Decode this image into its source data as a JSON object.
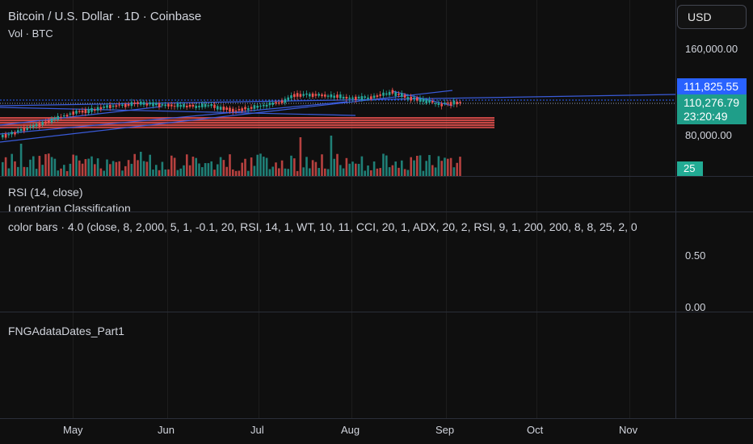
{
  "header": {
    "symbol_title": "Bitcoin / U.S. Dollar · 1D · Coinbase",
    "volume_label": "Vol · BTC",
    "currency_button": "USD"
  },
  "price_axis": {
    "labels": [
      "160,000.00",
      "80,000.00"
    ],
    "tag_blue": "111,825.55",
    "tag_last_price": "110,276.79",
    "tag_countdown": "23:20:49",
    "volume_tag": "25"
  },
  "panes": {
    "rsi_label": "RSI (14, close)",
    "lorentzian_label": "Lorentzian Classification",
    "color_bars_label": "color bars · 4.0 (close, 8, 2,000, 5, 1, -0.1, 20, RSI, 14, 1, WT, 10, 11, CCI, 20, 1, ADX, 20, 2, RSI, 9, 1, 200, 200, 8, 8, 25, 2, 0",
    "color_bars_axis": [
      "0.50",
      "0.00"
    ],
    "fng_label": "FNGAdataDates_Part1"
  },
  "time_axis": [
    "May",
    "Jun",
    "Jul",
    "Aug",
    "Sep",
    "Oct",
    "Nov"
  ],
  "colors": {
    "up": "#26a69a",
    "down": "#ef5350",
    "trendline": "#2962ff",
    "background": "#0f0f0f"
  }
}
